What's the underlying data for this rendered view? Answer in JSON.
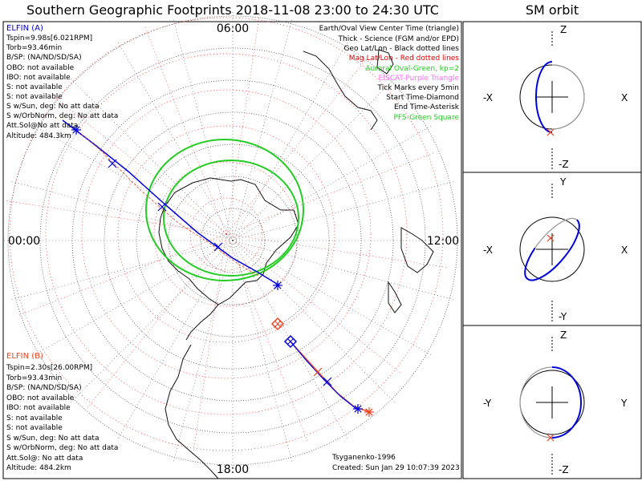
{
  "title": "Southern Geographic Footprints 2018-11-08 23:00 to 24:30 UTC",
  "sm_title": "SM orbit",
  "hours": {
    "top": "06:00",
    "left": "00:00",
    "right": "12:00",
    "bottom": "18:00"
  },
  "elfin_a": {
    "name": "ELFIN (A)",
    "lines": [
      "Tspin=9.98s[6.021RPM]",
      "Torb=93.46min",
      "B/SP: (NA/ND/SD/SA)",
      "OBO: not available",
      "IBO: not available",
      "S: not available",
      "S: not available",
      "S w/Sun, deg: No att data",
      "S w/OrbNorm, deg: No att data",
      "Att.Sol@No att data",
      "Altitude: 484.3km"
    ]
  },
  "elfin_b": {
    "name": "ELFIN (B)",
    "lines": [
      "Tspin=2.30s[26.00RPM]",
      "Torb=93.43min",
      "B/SP: (NA/ND/SD/SA)",
      "OBO: not available",
      "IBO: not available",
      "S: not available",
      "S: not available",
      "S w/Sun, deg: No att data",
      "S w/OrbNorm, deg: No att data",
      "Att.Sol@: No att data",
      "Altitude: 484.2km"
    ]
  },
  "legend": [
    {
      "text": "Earth/Oval View Center Time (triangle)",
      "color": "#000000"
    },
    {
      "text": "Thick - Science (FGM and/or EPD)",
      "color": "#000000"
    },
    {
      "text": "Geo Lat/Lon - Black dotted lines",
      "color": "#000000"
    },
    {
      "text": "Mag Lat/Lon - Red dotted lines",
      "color": "#e00000"
    },
    {
      "text": "Auroral Oval-Green, kp=2",
      "color": "#22cc22"
    },
    {
      "text": "EISCAT-Purple Triangle",
      "color": "#ff66ff"
    },
    {
      "text": "Tick Marks every 5min",
      "color": "#000000"
    },
    {
      "text": "Start Time-Diamond",
      "color": "#000000"
    },
    {
      "text": "End Time-Asterisk",
      "color": "#000000"
    },
    {
      "text": "PFS-Green Square",
      "color": "#22cc22"
    }
  ],
  "footer": {
    "model": "Tsyganenko-1996",
    "created": "Created: Sun Jan 29 10:07:39 2023"
  },
  "colors": {
    "elfin_a": "#0000dd",
    "elfin_b": "#ee4422",
    "oval": "#22cc22",
    "grid_geo": "#555555",
    "grid_mag": "#ee2222"
  },
  "sm_panels": [
    {
      "top": "Z",
      "bottom": "-Z",
      "left": "-X",
      "right": "X"
    },
    {
      "top": "Y",
      "bottom": "-Y",
      "left": "-X",
      "right": "X"
    },
    {
      "top": "Z",
      "bottom": "-Z",
      "left": "-Y",
      "right": "Y"
    }
  ]
}
